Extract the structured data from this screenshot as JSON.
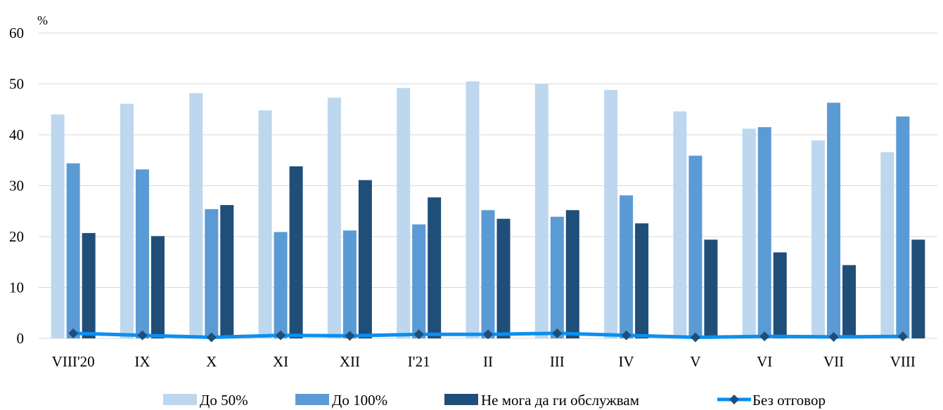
{
  "chart_data": {
    "type": "bar",
    "y_unit": "%",
    "ylim": [
      0,
      60
    ],
    "yticks": [
      0,
      10,
      20,
      30,
      40,
      50,
      60
    ],
    "grid": true,
    "legend_position": "bottom",
    "categories": [
      "VIII'20",
      "IX",
      "X",
      "XI",
      "XII",
      "I'21",
      "II",
      "III",
      "IV",
      "V",
      "VI",
      "VII",
      "VIII"
    ],
    "series": [
      {
        "name": "До 50%",
        "kind": "bar",
        "color": "#bdd7ee",
        "values": [
          44.0,
          46.1,
          48.2,
          44.8,
          47.3,
          49.2,
          50.5,
          50.0,
          48.8,
          44.6,
          41.2,
          38.9,
          36.6
        ]
      },
      {
        "name": "До 100%",
        "kind": "bar",
        "color": "#5b9bd5",
        "values": [
          34.4,
          33.2,
          25.4,
          20.9,
          21.2,
          22.4,
          25.2,
          23.9,
          28.1,
          35.9,
          41.5,
          46.3,
          43.6
        ]
      },
      {
        "name": "Не мога да ги обслужвам",
        "kind": "bar",
        "color": "#1f4e79",
        "values": [
          20.7,
          20.1,
          26.2,
          33.8,
          31.1,
          27.7,
          23.5,
          25.2,
          22.6,
          19.4,
          16.9,
          14.4,
          19.4
        ]
      },
      {
        "name": "Без отговор",
        "kind": "line",
        "color": "#0b8ff0",
        "marker_color": "#1f4e79",
        "values": [
          1.0,
          0.6,
          0.2,
          0.6,
          0.5,
          0.8,
          0.8,
          1.0,
          0.6,
          0.2,
          0.4,
          0.3,
          0.4
        ]
      }
    ]
  }
}
